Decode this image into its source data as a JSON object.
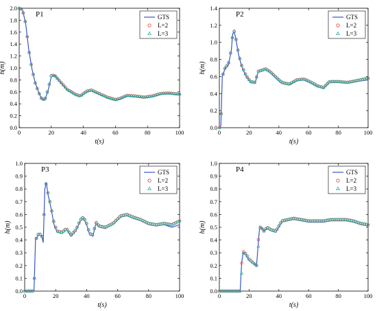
{
  "chart_data": [
    {
      "type": "line",
      "title": "P1",
      "xlabel": "t(s)",
      "ylabel": "h(m)",
      "xlim": [
        0,
        100
      ],
      "ylim": [
        0,
        2.0
      ],
      "xticks": [
        "0",
        "20",
        "40",
        "60",
        "80",
        "100"
      ],
      "yticks": [
        "0.0",
        "0.2",
        "0.4",
        "0.6",
        "0.8",
        "1.0",
        "1.2",
        "1.4",
        "1.6",
        "1.8",
        "2.0"
      ],
      "legend_position": "top-right",
      "series": [
        {
          "name": "GTS",
          "style": "line",
          "color": "#3355cc"
        },
        {
          "name": "L=2",
          "style": "circle",
          "color": "#e0443a"
        },
        {
          "name": "L=3",
          "style": "triangle",
          "color": "#2bb3a3"
        }
      ],
      "x": [
        0,
        2,
        4,
        6,
        8,
        10,
        12,
        14,
        16,
        18,
        20,
        22,
        25,
        30,
        35,
        38,
        42,
        45,
        50,
        55,
        60,
        63,
        67,
        72,
        78,
        83,
        88,
        93,
        100
      ],
      "gts": [
        2.0,
        1.98,
        1.75,
        1.3,
        0.98,
        0.75,
        0.6,
        0.48,
        0.46,
        0.62,
        0.85,
        0.88,
        0.78,
        0.63,
        0.55,
        0.52,
        0.6,
        0.62,
        0.56,
        0.5,
        0.46,
        0.48,
        0.53,
        0.52,
        0.5,
        0.52,
        0.56,
        0.57,
        0.55
      ],
      "l2": [
        2.0,
        1.98,
        1.75,
        1.3,
        0.98,
        0.75,
        0.6,
        0.48,
        0.47,
        0.64,
        0.87,
        0.88,
        0.79,
        0.64,
        0.56,
        0.53,
        0.61,
        0.63,
        0.57,
        0.51,
        0.47,
        0.49,
        0.54,
        0.53,
        0.51,
        0.53,
        0.57,
        0.58,
        0.56
      ],
      "l3": [
        2.0,
        1.98,
        1.75,
        1.3,
        0.98,
        0.75,
        0.6,
        0.48,
        0.47,
        0.64,
        0.87,
        0.88,
        0.79,
        0.64,
        0.56,
        0.53,
        0.61,
        0.63,
        0.57,
        0.51,
        0.47,
        0.49,
        0.54,
        0.53,
        0.51,
        0.53,
        0.57,
        0.58,
        0.56
      ]
    },
    {
      "type": "line",
      "title": "P2",
      "xlabel": "t(s)",
      "ylabel": "h(m)",
      "xlim": [
        0,
        100
      ],
      "ylim": [
        0,
        1.4
      ],
      "xticks": [
        "0",
        "20",
        "40",
        "60",
        "80",
        "100"
      ],
      "yticks": [
        "0.0",
        "0.2",
        "0.4",
        "0.6",
        "0.8",
        "1.0",
        "1.2",
        "1.4"
      ],
      "legend_position": "top-right",
      "series": [
        {
          "name": "GTS",
          "style": "line",
          "color": "#3355cc"
        },
        {
          "name": "L=2",
          "style": "circle",
          "color": "#e0443a"
        },
        {
          "name": "L=3",
          "style": "triangle",
          "color": "#2bb3a3"
        }
      ],
      "x": [
        0,
        1,
        2,
        4,
        6,
        8,
        9,
        10,
        11,
        13,
        15,
        18,
        21,
        24,
        26,
        28,
        31,
        34,
        37,
        42,
        47,
        52,
        57,
        62,
        66,
        70,
        74,
        80,
        86,
        92,
        100
      ],
      "gts": [
        0.0,
        0.02,
        0.6,
        0.7,
        0.73,
        0.9,
        1.1,
        1.12,
        1.05,
        0.85,
        0.72,
        0.6,
        0.53,
        0.52,
        0.65,
        0.66,
        0.68,
        0.65,
        0.6,
        0.52,
        0.5,
        0.55,
        0.56,
        0.52,
        0.48,
        0.46,
        0.53,
        0.53,
        0.52,
        0.54,
        0.56
      ],
      "l2": [
        0.0,
        0.02,
        0.6,
        0.71,
        0.74,
        0.92,
        1.1,
        1.13,
        1.06,
        0.86,
        0.73,
        0.61,
        0.54,
        0.53,
        0.66,
        0.67,
        0.69,
        0.66,
        0.61,
        0.53,
        0.51,
        0.56,
        0.57,
        0.53,
        0.49,
        0.47,
        0.54,
        0.54,
        0.53,
        0.55,
        0.58
      ],
      "l3": [
        0.0,
        0.02,
        0.6,
        0.71,
        0.74,
        0.92,
        1.1,
        1.13,
        1.06,
        0.86,
        0.73,
        0.61,
        0.54,
        0.53,
        0.66,
        0.67,
        0.69,
        0.66,
        0.61,
        0.53,
        0.51,
        0.56,
        0.57,
        0.53,
        0.49,
        0.47,
        0.54,
        0.54,
        0.53,
        0.55,
        0.58
      ]
    },
    {
      "type": "line",
      "title": "P3",
      "xlabel": "t(s)",
      "ylabel": "h(m)",
      "xlim": [
        0,
        100
      ],
      "ylim": [
        0,
        1.0
      ],
      "xticks": [
        "0",
        "20",
        "40",
        "60",
        "80",
        "100"
      ],
      "yticks": [
        "0.0",
        "0.1",
        "0.2",
        "0.3",
        "0.4",
        "0.5",
        "0.6",
        "0.7",
        "0.8",
        "0.9",
        "1.0"
      ],
      "legend_position": "top-right",
      "series": [
        {
          "name": "GTS",
          "style": "line",
          "color": "#3355cc"
        },
        {
          "name": "L=2",
          "style": "circle",
          "color": "#e0443a"
        },
        {
          "name": "L=3",
          "style": "triangle",
          "color": "#2bb3a3"
        }
      ],
      "x": [
        0,
        5,
        6,
        7,
        9,
        11,
        12,
        13,
        14,
        15,
        17,
        19,
        21,
        24,
        27,
        30,
        33,
        36,
        38,
        40,
        42,
        44,
        46,
        48,
        52,
        57,
        62,
        66,
        70,
        75,
        80,
        85,
        90,
        95,
        100
      ],
      "gts": [
        0.0,
        0.0,
        0.0,
        0.4,
        0.44,
        0.43,
        0.38,
        0.8,
        0.85,
        0.76,
        0.65,
        0.52,
        0.46,
        0.45,
        0.48,
        0.43,
        0.47,
        0.55,
        0.57,
        0.52,
        0.44,
        0.43,
        0.53,
        0.5,
        0.49,
        0.52,
        0.58,
        0.59,
        0.57,
        0.55,
        0.52,
        0.51,
        0.52,
        0.5,
        0.52
      ],
      "l2": [
        0.0,
        0.0,
        0.0,
        0.4,
        0.45,
        0.44,
        0.39,
        0.81,
        0.85,
        0.77,
        0.66,
        0.53,
        0.47,
        0.46,
        0.49,
        0.44,
        0.48,
        0.56,
        0.58,
        0.53,
        0.45,
        0.44,
        0.54,
        0.51,
        0.5,
        0.53,
        0.59,
        0.6,
        0.58,
        0.56,
        0.53,
        0.52,
        0.53,
        0.52,
        0.55
      ],
      "l3": [
        0.0,
        0.0,
        0.0,
        0.4,
        0.45,
        0.44,
        0.39,
        0.81,
        0.85,
        0.77,
        0.66,
        0.53,
        0.47,
        0.46,
        0.49,
        0.44,
        0.48,
        0.56,
        0.58,
        0.53,
        0.45,
        0.44,
        0.54,
        0.51,
        0.5,
        0.53,
        0.59,
        0.6,
        0.58,
        0.56,
        0.53,
        0.52,
        0.53,
        0.52,
        0.55
      ]
    },
    {
      "type": "line",
      "title": "P4",
      "xlabel": "t(s)",
      "ylabel": "h(m)",
      "xlim": [
        0,
        100
      ],
      "ylim": [
        0,
        1.0
      ],
      "xticks": [
        "0",
        "20",
        "40",
        "60",
        "80",
        "100"
      ],
      "yticks": [
        "0.0",
        "0.1",
        "0.2",
        "0.3",
        "0.4",
        "0.5",
        "0.6",
        "0.7",
        "0.8",
        "0.9",
        "1.0"
      ],
      "legend_position": "top-right",
      "series": [
        {
          "name": "GTS",
          "style": "line",
          "color": "#3355cc"
        },
        {
          "name": "L=2",
          "style": "circle",
          "color": "#e0443a"
        },
        {
          "name": "L=3",
          "style": "triangle",
          "color": "#2bb3a3"
        }
      ],
      "x": [
        0,
        5,
        10,
        14,
        15,
        16,
        18,
        20,
        22,
        24,
        25,
        26,
        27,
        28,
        30,
        32,
        35,
        38,
        42,
        46,
        50,
        55,
        60,
        65,
        70,
        75,
        80,
        85,
        90,
        95,
        100
      ],
      "gts": [
        0.0,
        0.0,
        0.0,
        0.0,
        0.22,
        0.3,
        0.28,
        0.24,
        0.22,
        0.21,
        0.2,
        0.35,
        0.49,
        0.5,
        0.47,
        0.49,
        0.47,
        0.46,
        0.54,
        0.55,
        0.56,
        0.55,
        0.54,
        0.54,
        0.54,
        0.55,
        0.55,
        0.55,
        0.54,
        0.52,
        0.51
      ],
      "l2": [
        0.0,
        0.0,
        0.0,
        0.0,
        0.22,
        0.31,
        0.29,
        0.25,
        0.23,
        0.21,
        0.2,
        0.37,
        0.5,
        0.5,
        0.47,
        0.5,
        0.48,
        0.47,
        0.55,
        0.56,
        0.57,
        0.56,
        0.55,
        0.55,
        0.55,
        0.56,
        0.56,
        0.56,
        0.55,
        0.53,
        0.52
      ],
      "l3": [
        0.0,
        0.0,
        0.0,
        0.0,
        0.14,
        0.3,
        0.29,
        0.25,
        0.23,
        0.21,
        0.2,
        0.3,
        0.5,
        0.5,
        0.47,
        0.5,
        0.48,
        0.47,
        0.55,
        0.56,
        0.57,
        0.56,
        0.55,
        0.55,
        0.55,
        0.56,
        0.56,
        0.56,
        0.55,
        0.53,
        0.52
      ]
    }
  ]
}
